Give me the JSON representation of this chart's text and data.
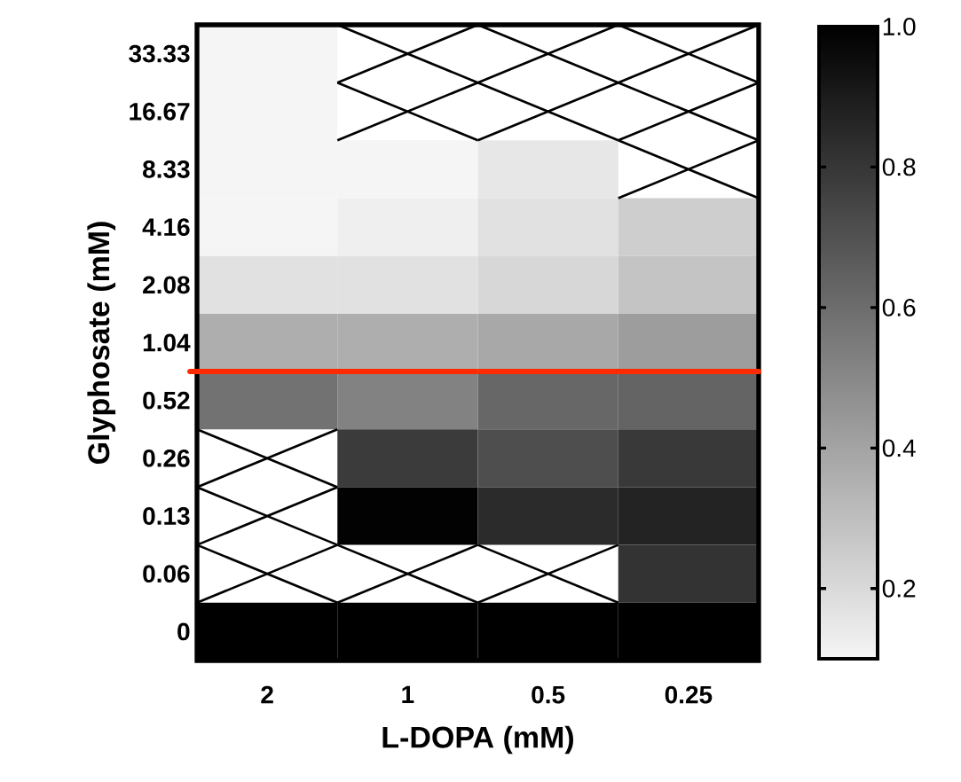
{
  "chart_data": {
    "type": "heatmap",
    "xlabel": "L-DOPA (mM)",
    "ylabel": "Glyphosate (mM)",
    "categories": [
      "2",
      "1",
      "0.5",
      "0.25"
    ],
    "y_categories": [
      "33.33",
      "16.67",
      "8.33",
      "4.16",
      "2.08",
      "1.04",
      "0.52",
      "0.26",
      "0.13",
      "0.06",
      "0"
    ],
    "cells": [
      [
        0.1,
        null,
        null,
        null
      ],
      [
        0.1,
        null,
        null,
        null
      ],
      [
        0.1,
        0.1,
        0.15,
        null
      ],
      [
        0.1,
        0.12,
        0.17,
        0.24
      ],
      [
        0.17,
        0.17,
        0.21,
        0.28
      ],
      [
        0.36,
        0.36,
        0.38,
        0.42
      ],
      [
        0.58,
        0.52,
        0.62,
        0.63
      ],
      [
        null,
        0.78,
        0.71,
        0.79
      ],
      [
        null,
        0.99,
        0.84,
        0.87
      ],
      [
        null,
        null,
        null,
        0.81
      ],
      [
        1.0,
        1.0,
        1.0,
        1.0
      ]
    ],
    "clim": [
      0.1,
      1.0
    ],
    "cticks": [
      0.2,
      0.4,
      0.6,
      0.8,
      {
        "value": 1.0,
        "label": "1.0"
      }
    ]
  }
}
